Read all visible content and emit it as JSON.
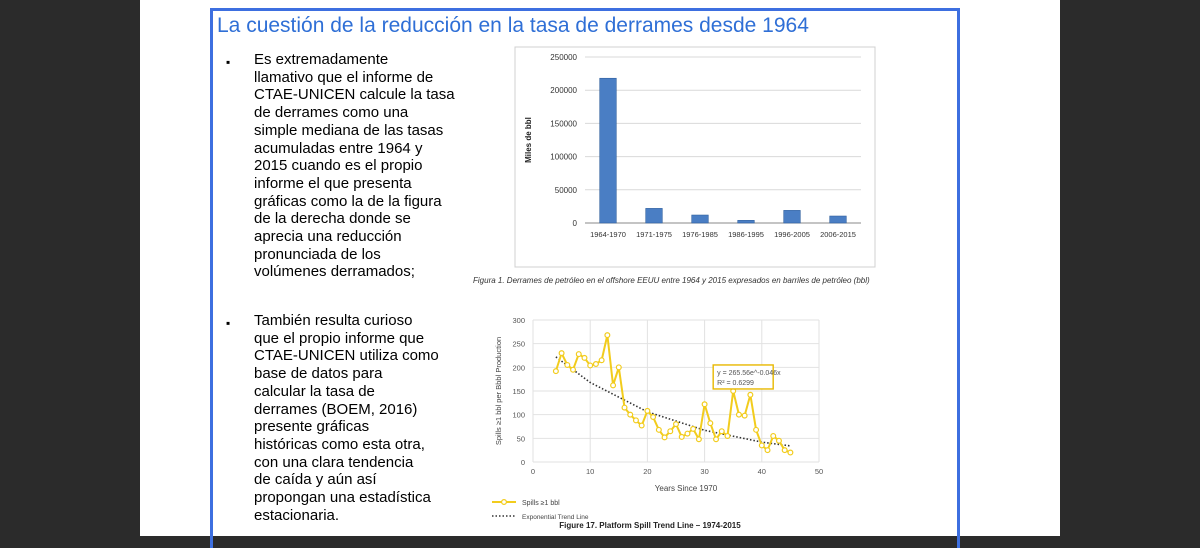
{
  "slide": {
    "title": "La cuestión de la reducción en la tasa de derrames desde 1964",
    "bullets": [
      {
        "marker": "▪",
        "text": "Es extremadamente\nllamativo que el informe de\nCTAE-UNICEN calcule la tasa\nde derrames como una\nsimple mediana de las tasas\nacumuladas entre 1964 y\n2015 cuando es el propio\ninforme el que presenta\ngráficas como la de la figura\nde la derecha donde se\naprecia una reducción\npronunciada de los\nvolúmenes derramados;"
      },
      {
        "marker": "▪",
        "text": "También resulta curioso\nque el propio informe que\nCTAE-UNICEN utiliza como\nbase de datos para\ncalcular la tasa de\nderrames (BOEM, 2016)\npresente gráficas\nhistóricas como esta otra,\ncon una clara tendencia\nde caída y aún así\npropongan una estadística\nestacionaria."
      }
    ]
  },
  "colors": {
    "title": "#2f6fd6",
    "frame": "#3d6fe0",
    "bar_fill": "#4a7ec4",
    "spill_line": "#f2cc1d",
    "trend_line": "#333333",
    "equation_box": "#e8b800"
  },
  "chart_data": [
    {
      "type": "bar",
      "categories": [
        "1964-1970",
        "1971-1975",
        "1976-1985",
        "1986-1995",
        "1996-2005",
        "2006-2015"
      ],
      "values": [
        218000,
        22000,
        12000,
        4000,
        19000,
        10500
      ],
      "ylabel": "Miles de bbl",
      "ylim": [
        0,
        250000
      ],
      "yticks": [
        0,
        50000,
        100000,
        150000,
        200000,
        250000
      ],
      "grid": true,
      "caption": "Figura 1. Derrames de petróleo en el offshore EEUU entre 1964 y 2015 expresados en barriles de petróleo (bbl)"
    },
    {
      "type": "line",
      "title": "Figure 17. Platform Spill Trend Line – 1974-2015",
      "xlabel": "Years Since 1970",
      "ylabel": "Spills ≥1 bbl per Bbbl Production",
      "xlim": [
        0,
        50
      ],
      "ylim": [
        0,
        300
      ],
      "xticks": [
        0,
        10,
        20,
        30,
        40,
        50
      ],
      "yticks": [
        0,
        50,
        100,
        150,
        200,
        250,
        300
      ],
      "grid": true,
      "legend_position": "bottom-left",
      "series": [
        {
          "name": "Spills ≥1 bbl",
          "x": [
            4,
            5,
            6,
            7,
            8,
            9,
            10,
            11,
            12,
            13,
            14,
            15,
            16,
            17,
            18,
            19,
            20,
            21,
            22,
            23,
            24,
            25,
            26,
            27,
            28,
            29,
            30,
            31,
            32,
            33,
            34,
            35,
            36,
            37,
            38,
            39,
            40,
            41,
            42,
            43,
            44,
            45
          ],
          "y": [
            192,
            230,
            205,
            195,
            228,
            220,
            204,
            207,
            215,
            268,
            162,
            200,
            115,
            100,
            88,
            77,
            108,
            95,
            68,
            52,
            65,
            80,
            53,
            60,
            70,
            48,
            122,
            82,
            48,
            65,
            55,
            150,
            100,
            98,
            142,
            68,
            35,
            25,
            55,
            45,
            25,
            20
          ]
        },
        {
          "name": "Exponential Trend Line",
          "x": [
            4,
            10,
            20,
            30,
            40,
            45
          ],
          "y": [
            222,
            168,
            106,
            67,
            42,
            34
          ]
        }
      ],
      "annotations": [
        "y = 265.56e^-0.046x",
        "R² = 0.6299"
      ]
    }
  ]
}
